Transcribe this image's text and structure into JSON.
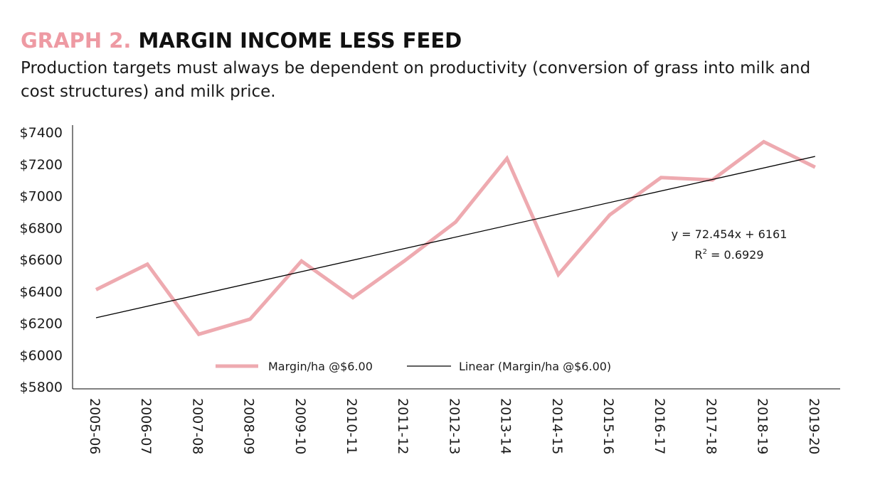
{
  "header": {
    "title_prefix": "GRAPH 2.",
    "title_main": "MARGIN INCOME LESS FEED",
    "subtitle": "Production targets must always be dependent on productivity (conversion of grass into milk and cost structures) and milk price."
  },
  "chart_data": {
    "type": "line",
    "categories": [
      "2005-06",
      "2006-07",
      "2007-08",
      "2008-09",
      "2009-10",
      "2010-11",
      "2011-12",
      "2012-13",
      "2013-14",
      "2014-15",
      "2015-16",
      "2016-17",
      "2017-18",
      "2018-19",
      "2019-20"
    ],
    "series": [
      {
        "name": "Margin/ha @$6.00",
        "color": "#eeaab0",
        "values": [
          6410,
          6570,
          6130,
          6225,
          6590,
          6360,
          6590,
          6835,
          7235,
          6505,
          6880,
          7115,
          7100,
          7340,
          7180
        ]
      }
    ],
    "trendline": {
      "name": "Linear (Margin/ha @$6.00)",
      "color": "#000000",
      "slope": 72.454,
      "intercept": 6161,
      "equation": "y = 72.454x + 6161",
      "r2_label": "R",
      "r2_sup": "2",
      "r2_value": " = 0.6929"
    },
    "ylim": [
      5800,
      7400
    ],
    "yticks": [
      5800,
      6000,
      6200,
      6400,
      6600,
      6800,
      7000,
      7200,
      7400
    ],
    "ytick_prefix": "$",
    "grid": false,
    "legend": "bottom-center"
  }
}
